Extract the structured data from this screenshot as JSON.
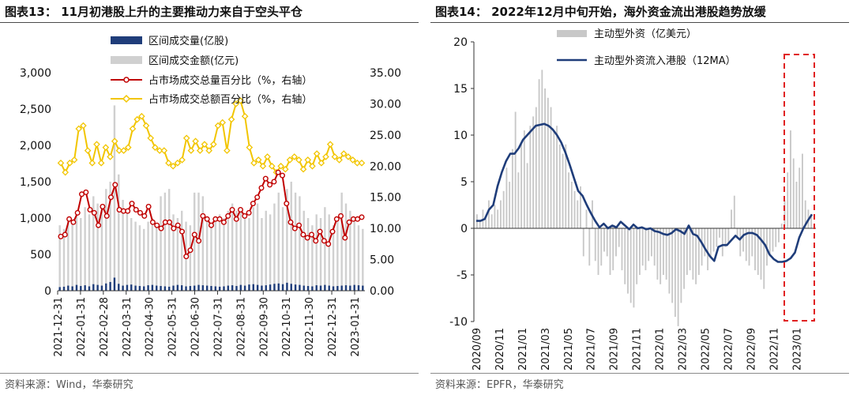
{
  "left_panel": {
    "title": "图表13： 11月初港股上升的主要推动力来自于空头平仓",
    "source": "资料来源：Wind，华泰研究"
  },
  "right_panel": {
    "title": "图表14： 2022年12月中旬开始，海外资金流出港股趋势放缓",
    "source": "资料来源：EPFR，华泰研究"
  },
  "colors": {
    "volume": "#1f3d7a",
    "turnover": "#d0d0d0",
    "volume_pct": "#c00000",
    "turnover_pct": "#f2c500",
    "flow_bar": "#c8c8c8",
    "flow_line": "#1f3d7a",
    "highlight": "#e02020"
  },
  "chart_data": [
    {
      "type": "bar",
      "title": "",
      "ylim": [
        0,
        3000
      ],
      "y2lim": [
        0,
        35
      ],
      "y_ticks": [
        "0",
        "500",
        "1,000",
        "1,500",
        "2,000",
        "2,500",
        "3,000"
      ],
      "y2_ticks": [
        "0.00",
        "5.00",
        "10.00",
        "15.00",
        "20.00",
        "25.00",
        "30.00",
        "35.00"
      ],
      "x_ticks": [
        "2021-12-31",
        "2022-01-31",
        "2022-02-28",
        "2022-03-31",
        "2022-04-30",
        "2022-05-31",
        "2022-06-30",
        "2022-07-31",
        "2022-08-31",
        "2022-09-30",
        "2022-10-31",
        "2022-11-30",
        "2022-12-31",
        "2023-01-31"
      ],
      "legend": [
        {
          "label": "区间成交量(亿股)",
          "kind": "bar-dark"
        },
        {
          "label": "区间成交金额(亿元)",
          "kind": "bar-light"
        },
        {
          "label": "占市场成交总量百分比（%，右轴）",
          "kind": "line-red"
        },
        {
          "label": "占市场成交总额百分比（%，右轴）",
          "kind": "line-yellow"
        }
      ],
      "series": [
        {
          "name": "区间成交量(亿股)",
          "axis": "left",
          "values": [
            50,
            55,
            70,
            60,
            80,
            65,
            75,
            60,
            90,
            80,
            70,
            100,
            120,
            180,
            95,
            70,
            80,
            85,
            70,
            65,
            60,
            75,
            80,
            70,
            65,
            60,
            55,
            70,
            80,
            75,
            60,
            65,
            70,
            80,
            75,
            70,
            65,
            60,
            55,
            60,
            70,
            75,
            65,
            80,
            70,
            85,
            90,
            80,
            70,
            75,
            85,
            95,
            100,
            90,
            110,
            95,
            85,
            80,
            70,
            65,
            60,
            75,
            70,
            80,
            70,
            60,
            65,
            70,
            75,
            70,
            80,
            75,
            70
          ]
        },
        {
          "name": "区间成交金额(亿元)",
          "axis": "left",
          "values": [
            900,
            850,
            1000,
            950,
            1100,
            1000,
            1150,
            1050,
            1300,
            1200,
            1150,
            1400,
            1500,
            2550,
            1600,
            1250,
            1100,
            1000,
            950,
            900,
            850,
            950,
            1000,
            900,
            1300,
            1350,
            1400,
            1050,
            1000,
            1100,
            950,
            900,
            1350,
            1350,
            1300,
            1000,
            900,
            950,
            1050,
            1000,
            1100,
            1200,
            1100,
            1150,
            1050,
            1000,
            1150,
            1200,
            1000,
            1100,
            1050,
            1200,
            1350,
            1150,
            1400,
            1500,
            1350,
            1300,
            1100,
            1000,
            900,
            1050,
            1000,
            1150,
            1050,
            900,
            1000,
            1350,
            1200,
            1100,
            1000,
            900,
            850
          ]
        },
        {
          "name": "占市场成交总量百分比（%，右轴）",
          "axis": "right",
          "values": [
            8.7,
            9.0,
            11.5,
            11.0,
            12.5,
            15.5,
            15.8,
            13.0,
            12.5,
            10.5,
            13.5,
            12.0,
            15.0,
            17.0,
            13.0,
            12.8,
            12.8,
            14.0,
            13.0,
            12.5,
            12.0,
            13.5,
            11.0,
            10.5,
            10.0,
            11.0,
            11.0,
            10.0,
            10.5,
            9.5,
            5.5,
            6.5,
            9.0,
            8.0,
            12.0,
            11.5,
            10.5,
            11.5,
            11.5,
            11.0,
            12.0,
            13.0,
            11.5,
            13.0,
            12.0,
            12.5,
            14.0,
            15.0,
            16.5,
            18.0,
            17.0,
            17.5,
            19.0,
            18.5,
            14.0,
            11.0,
            10.0,
            10.5,
            9.0,
            8.5,
            9.0,
            8.0,
            9.5,
            8.0,
            7.5,
            9.5,
            11.5,
            12.0,
            8.5,
            11.0,
            11.5,
            11.5,
            11.8
          ]
        },
        {
          "name": "占市场成交总额百分比（%，右轴）",
          "axis": "right",
          "values": [
            20.5,
            19.0,
            20.5,
            21.0,
            26.0,
            26.5,
            22.5,
            20.5,
            23.5,
            20.5,
            23.0,
            21.5,
            24.0,
            22.5,
            22.5,
            23.0,
            26.0,
            27.5,
            28.0,
            26.5,
            24.5,
            23.0,
            22.5,
            22.5,
            20.5,
            20.0,
            20.5,
            21.0,
            24.5,
            22.5,
            24.0,
            22.5,
            23.5,
            22.5,
            23.5,
            26.5,
            27.0,
            22.5,
            27.5,
            30.0,
            30.5,
            28.0,
            23.0,
            20.5,
            21.0,
            20.0,
            21.5,
            20.0,
            19.0,
            20.0,
            19.5,
            21.0,
            21.5,
            21.0,
            19.5,
            21.0,
            20.0,
            22.0,
            20.5,
            21.5,
            23.5,
            21.5,
            21.0,
            22.0,
            21.5,
            21.0,
            20.5,
            20.5
          ]
        }
      ]
    },
    {
      "type": "bar",
      "title": "",
      "ylim": [
        -10,
        20
      ],
      "y_ticks": [
        "-10",
        "-5",
        "0",
        "5",
        "10",
        "15",
        "20"
      ],
      "x_ticks": [
        "2020/09",
        "2020/11",
        "2021/01",
        "2021/03",
        "2021/05",
        "2021/07",
        "2021/09",
        "2021/11",
        "2022/01",
        "2022/03",
        "2022/05",
        "2022/07",
        "2022/09",
        "2022/11",
        "2023/01"
      ],
      "legend": [
        {
          "label": "主动型外资（亿美元）",
          "kind": "bar-light"
        },
        {
          "label": "主动型外资流入港股（12MA）",
          "kind": "line-blue"
        }
      ],
      "series": [
        {
          "name": "主动型外资（亿美元）",
          "kind": "bar",
          "values": [
            1.5,
            0.8,
            2.0,
            1.0,
            3.0,
            1.5,
            2.5,
            2.0,
            3.0,
            4.0,
            6.5,
            5.0,
            8.5,
            12.5,
            6.0,
            9.0,
            10.5,
            7.0,
            11.0,
            12.0,
            13.0,
            16.0,
            17.0,
            15.0,
            14.0,
            13.0,
            10.5,
            11.0,
            9.0,
            8.0,
            9.0,
            6.0,
            5.0,
            4.0,
            3.0,
            4.5,
            -3.0,
            2.0,
            -4.0,
            3.0,
            -3.5,
            -5.0,
            -4.0,
            -2.5,
            -3.0,
            -5.0,
            -4.5,
            -3.0,
            -2.0,
            -4.5,
            -6.0,
            -7.0,
            -8.0,
            -8.5,
            -6.0,
            -5.0,
            -4.0,
            -4.5,
            -3.5,
            -3.0,
            -4.0,
            -5.5,
            -6.0,
            -5.0,
            -5.5,
            -7.0,
            -8.0,
            -9.5,
            -10.5,
            -8.0,
            -6.5,
            -5.0,
            -4.5,
            -5.5,
            -6.0,
            -5.0,
            -4.0,
            -3.0,
            -4.5,
            -3.0,
            -2.5,
            -2.0,
            -1.0,
            -3.0,
            -2.0,
            -1.5,
            2.0,
            3.5,
            -1.0,
            -3.0,
            -2.5,
            -3.5,
            -4.0,
            -3.0,
            -4.5,
            -5.0,
            -5.5,
            -6.5,
            -4.0,
            -3.0,
            -2.5,
            -2.0,
            -1.5,
            0.5,
            3.0,
            6.0,
            10.5,
            7.5,
            5.0,
            6.5,
            8.0,
            3.0,
            2.0,
            1.5
          ]
        },
        {
          "name": "主动型外资流入港股（12MA）",
          "kind": "line",
          "values": [
            0.8,
            0.8,
            1.0,
            2.0,
            2.5,
            4.5,
            6.0,
            7.2,
            8.0,
            8.0,
            8.6,
            9.5,
            10.0,
            10.5,
            11.0,
            11.1,
            11.2,
            11.0,
            10.6,
            10.0,
            9.2,
            8.1,
            6.8,
            5.4,
            4.0,
            3.5,
            2.5,
            1.6,
            0.8,
            0.1,
            0.5,
            0.0,
            0.3,
            0.1,
            0.7,
            0.3,
            -0.1,
            0.4,
            0.0,
            0.1,
            -0.1,
            0.0,
            -0.3,
            -0.4,
            -0.6,
            -0.7,
            -0.5,
            -0.1,
            -0.3,
            -0.6,
            0.3,
            -0.6,
            -0.8,
            -1.5,
            -2.3,
            -3.0,
            -3.5,
            -2.0,
            -1.8,
            -1.8,
            -1.3,
            -0.8,
            -1.2,
            -0.7,
            -0.5,
            -0.5,
            -0.7,
            -1.2,
            -1.8,
            -2.8,
            -3.3,
            -3.6,
            -3.6,
            -3.5,
            -3.2,
            -2.6,
            -1.0,
            0.0,
            0.8,
            1.5
          ]
        }
      ]
    }
  ]
}
